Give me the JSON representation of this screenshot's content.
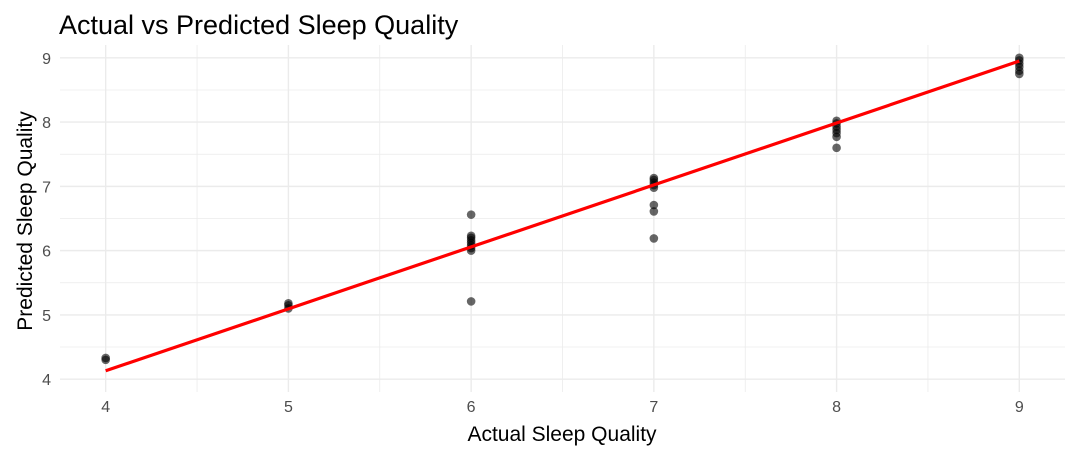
{
  "chart_data": {
    "type": "scatter",
    "title": "Actual vs Predicted Sleep Quality",
    "xlabel": "Actual Sleep Quality",
    "ylabel": "Predicted Sleep Quality",
    "xlim": [
      3.75,
      9.25
    ],
    "ylim": [
      3.8,
      9.2
    ],
    "xticks": [
      4,
      5,
      6,
      7,
      8,
      9
    ],
    "yticks": [
      4,
      5,
      6,
      7,
      8,
      9
    ],
    "grid": true,
    "points": [
      {
        "x": 4,
        "y": 4.33
      },
      {
        "x": 4,
        "y": 4.3
      },
      {
        "x": 5,
        "y": 5.18
      },
      {
        "x": 5,
        "y": 5.15
      },
      {
        "x": 5,
        "y": 5.1
      },
      {
        "x": 6,
        "y": 6.56
      },
      {
        "x": 6,
        "y": 6.23
      },
      {
        "x": 6,
        "y": 6.2
      },
      {
        "x": 6,
        "y": 6.16
      },
      {
        "x": 6,
        "y": 6.12
      },
      {
        "x": 6,
        "y": 6.08
      },
      {
        "x": 6,
        "y": 6.04
      },
      {
        "x": 6,
        "y": 6.0
      },
      {
        "x": 6,
        "y": 5.21
      },
      {
        "x": 7,
        "y": 7.13
      },
      {
        "x": 7,
        "y": 7.1
      },
      {
        "x": 7,
        "y": 7.06
      },
      {
        "x": 7,
        "y": 7.02
      },
      {
        "x": 7,
        "y": 6.98
      },
      {
        "x": 7,
        "y": 6.71
      },
      {
        "x": 7,
        "y": 6.61
      },
      {
        "x": 7,
        "y": 6.19
      },
      {
        "x": 8,
        "y": 8.02
      },
      {
        "x": 8,
        "y": 7.98
      },
      {
        "x": 8,
        "y": 7.93
      },
      {
        "x": 8,
        "y": 7.88
      },
      {
        "x": 8,
        "y": 7.83
      },
      {
        "x": 8,
        "y": 7.77
      },
      {
        "x": 8,
        "y": 7.6
      },
      {
        "x": 9,
        "y": 9.0
      },
      {
        "x": 9,
        "y": 8.96
      },
      {
        "x": 9,
        "y": 8.91
      },
      {
        "x": 9,
        "y": 8.86
      },
      {
        "x": 9,
        "y": 8.8
      },
      {
        "x": 9,
        "y": 8.75
      }
    ],
    "fit_line": {
      "x": [
        4,
        9
      ],
      "y": [
        4.13,
        8.95
      ]
    },
    "point_color": "#000000",
    "line_color": "#ff0000",
    "grid_color": "#ebebeb"
  }
}
